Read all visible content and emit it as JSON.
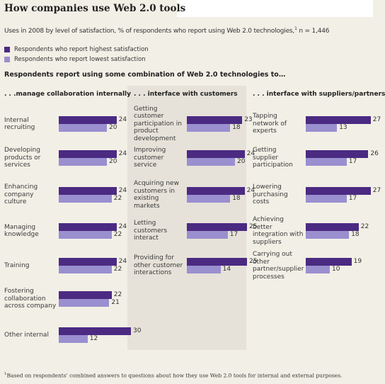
{
  "title": "How companies use Web 2.0 tools",
  "subtitle": "Uses in 2008 by level of satisfaction, % of respondents who report using Web 2.0 technologies,",
  "subtitle_mark": "1",
  "subtitle_n": " n = 1,446",
  "intro": "Respondents report using some combination of Web 2.0 technologies to…",
  "footnote_mark": "1",
  "footnote": "Based on respondents' combined answers to questions about how they use Web 2.0 tools for internal and external purposes.",
  "colors": {
    "highest": "#4b2a82",
    "lowest": "#9a8fcf"
  },
  "chart_data": {
    "type": "bar",
    "orientation": "horizontal",
    "legend": [
      {
        "key": "highest",
        "label": "Respondents who report highest satisfaction"
      },
      {
        "key": "lowest",
        "label": "Respondents who report lowest satisfaction"
      }
    ],
    "groups": [
      {
        "title": ". . .manage collaboration internally",
        "items": [
          {
            "label": "Internal recruiting",
            "highest": 24,
            "lowest": 20
          },
          {
            "label": "Developing products or services",
            "highest": 24,
            "lowest": 20
          },
          {
            "label": "Enhancing company culture",
            "highest": 24,
            "lowest": 22
          },
          {
            "label": "Managing knowledge",
            "highest": 24,
            "lowest": 22
          },
          {
            "label": "Training",
            "highest": 24,
            "lowest": 22
          },
          {
            "label": "Fostering collaboration across company",
            "highest": 22,
            "lowest": 21
          },
          {
            "label": "Other internal",
            "highest": 30,
            "lowest": 12
          }
        ]
      },
      {
        "title": ". . . interface with customers",
        "items": [
          {
            "label": "Getting customer participation in product development",
            "highest": 23,
            "lowest": 18
          },
          {
            "label": "Improving customer service",
            "highest": 24,
            "lowest": 20
          },
          {
            "label": "Acquiring new customers in existing markets",
            "highest": 24,
            "lowest": 18
          },
          {
            "label": "Letting customers interact",
            "highest": 25,
            "lowest": 17
          },
          {
            "label": "Providing for other customer interactions",
            "highest": 25,
            "lowest": 14
          }
        ]
      },
      {
        "title": ". . . interface with suppliers/partners",
        "items": [
          {
            "label": "Tapping network of experts",
            "highest": 27,
            "lowest": 13
          },
          {
            "label": "Getting supplier participation",
            "highest": 26,
            "lowest": 17
          },
          {
            "label": "Lowering purchasing costs",
            "highest": 27,
            "lowest": 17
          },
          {
            "label": "Achieving better integration with suppliers",
            "highest": 22,
            "lowest": 18
          },
          {
            "label": "Carrying out other partner/supplier processes",
            "highest": 19,
            "lowest": 10
          }
        ]
      }
    ]
  }
}
